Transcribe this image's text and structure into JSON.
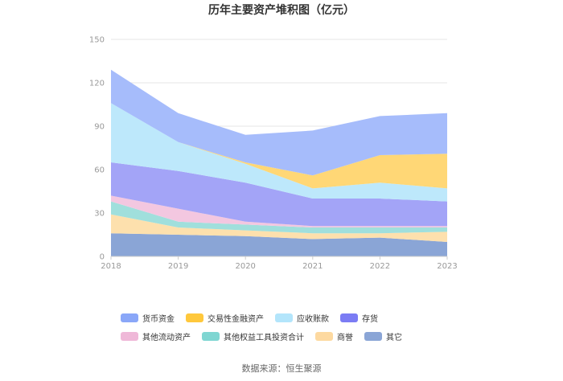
{
  "chart_data": {
    "type": "area",
    "stacked": true,
    "title": "历年主要资产堆积图（亿元）",
    "x": [
      "2018",
      "2019",
      "2020",
      "2021",
      "2022",
      "2023"
    ],
    "ylim": [
      0,
      150
    ],
    "yticks": [
      "0",
      "30",
      "60",
      "90",
      "120",
      "150"
    ],
    "series": [
      {
        "name": "其它",
        "color": "#8aa5d6",
        "values": [
          16,
          15,
          14,
          12,
          13,
          10
        ]
      },
      {
        "name": "商誉",
        "color": "#fde0ad",
        "values": [
          13,
          5,
          4,
          4,
          3,
          7
        ]
      },
      {
        "name": "其他权益工具投资合计",
        "color": "#a0dfdc",
        "values": [
          9,
          4,
          4,
          4,
          4,
          3
        ]
      },
      {
        "name": "其他流动资产",
        "color": "#f3c7e0",
        "values": [
          4,
          9,
          2,
          1,
          1,
          1
        ]
      },
      {
        "name": "存货",
        "color": "#a3a4f7",
        "values": [
          23,
          26,
          27,
          19,
          19,
          17
        ]
      },
      {
        "name": "应收账款",
        "color": "#bde8fb",
        "values": [
          41,
          20,
          13,
          7,
          11,
          9
        ]
      },
      {
        "name": "交易性金融资产",
        "color": "#ffd776",
        "values": [
          0,
          0,
          1,
          9,
          19,
          24
        ]
      },
      {
        "name": "货币资金",
        "color": "#a6bcfb",
        "values": [
          23,
          20,
          19,
          31,
          27,
          28
        ]
      }
    ],
    "legend_order": [
      "货币资金",
      "交易性金融资产",
      "应收账款",
      "存货",
      "其他流动资产",
      "其他权益工具投资合计",
      "商誉",
      "其它"
    ],
    "legend_colors": {
      "货币资金": "#8aa7f8",
      "交易性金融资产": "#ffc83c",
      "应收账款": "#b3e5fb",
      "存货": "#7b7cf4",
      "其他流动资产": "#efb8d8",
      "其他权益工具投资合计": "#7fd6d2",
      "商誉": "#fdd9a0",
      "其它": "#8aa5d6"
    }
  },
  "footer": {
    "source": "数据来源：恒生聚源"
  }
}
